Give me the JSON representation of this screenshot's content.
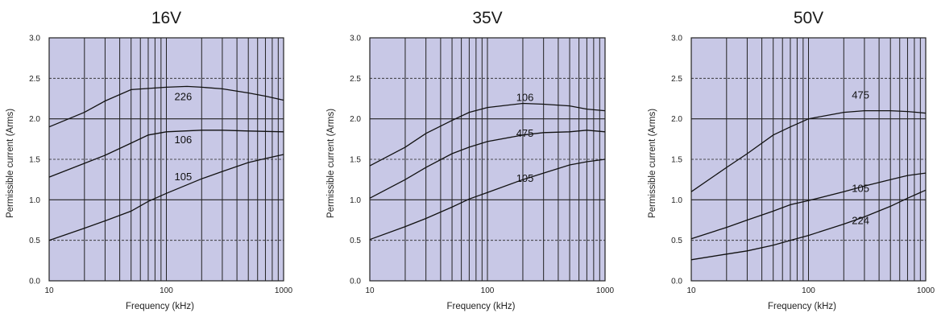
{
  "chart_data": [
    {
      "type": "line",
      "title": "16V",
      "xlabel": "Frequency (kHz)",
      "ylabel": "Permissible current (Arms)",
      "x_scale": "log",
      "xlim": [
        10,
        1000
      ],
      "ylim": [
        0.0,
        3.0
      ],
      "x_ticks": [
        "10",
        "100",
        "1000"
      ],
      "y_ticks": [
        "0.0",
        "0.5",
        "1.0",
        "1.5",
        "2.0",
        "2.5",
        "3.0"
      ],
      "grid": "on",
      "plot_background": "#c8c8e6",
      "series": [
        {
          "name": "226",
          "label_at": [
            100,
            2.23
          ],
          "points": [
            [
              10,
              1.9
            ],
            [
              20,
              2.08
            ],
            [
              30,
              2.22
            ],
            [
              50,
              2.36
            ],
            [
              100,
              2.39
            ],
            [
              150,
              2.4
            ],
            [
              200,
              2.39
            ],
            [
              300,
              2.37
            ],
            [
              500,
              2.32
            ],
            [
              700,
              2.28
            ],
            [
              1000,
              2.23
            ]
          ]
        },
        {
          "name": "106",
          "label_at": [
            100,
            1.7
          ],
          "points": [
            [
              10,
              1.28
            ],
            [
              20,
              1.45
            ],
            [
              30,
              1.55
            ],
            [
              50,
              1.7
            ],
            [
              70,
              1.8
            ],
            [
              100,
              1.84
            ],
            [
              200,
              1.86
            ],
            [
              300,
              1.86
            ],
            [
              500,
              1.85
            ],
            [
              1000,
              1.84
            ]
          ]
        },
        {
          "name": "105",
          "label_at": [
            100,
            1.24
          ],
          "points": [
            [
              10,
              0.5
            ],
            [
              20,
              0.65
            ],
            [
              30,
              0.74
            ],
            [
              50,
              0.86
            ],
            [
              70,
              0.98
            ],
            [
              100,
              1.08
            ],
            [
              200,
              1.26
            ],
            [
              300,
              1.35
            ],
            [
              500,
              1.46
            ],
            [
              700,
              1.51
            ],
            [
              1000,
              1.56
            ]
          ]
        }
      ]
    },
    {
      "type": "line",
      "title": "35V",
      "xlabel": "Frequency (kHz)",
      "ylabel": "Permissible current (Arms)",
      "x_scale": "log",
      "xlim": [
        10,
        1000
      ],
      "ylim": [
        0.0,
        3.0
      ],
      "x_ticks": [
        "10",
        "100",
        "1000"
      ],
      "y_ticks": [
        "0.0",
        "0.5",
        "1.0",
        "1.5",
        "2.0",
        "2.5",
        "3.0"
      ],
      "grid": "on",
      "plot_background": "#c8c8e6",
      "series": [
        {
          "name": "106",
          "label_at": [
            150,
            2.22
          ],
          "points": [
            [
              10,
              1.42
            ],
            [
              20,
              1.65
            ],
            [
              30,
              1.82
            ],
            [
              50,
              1.98
            ],
            [
              70,
              2.08
            ],
            [
              100,
              2.14
            ],
            [
              200,
              2.19
            ],
            [
              300,
              2.18
            ],
            [
              500,
              2.16
            ],
            [
              700,
              2.12
            ],
            [
              1000,
              2.1
            ]
          ]
        },
        {
          "name": "475",
          "label_at": [
            150,
            1.78
          ],
          "points": [
            [
              10,
              1.02
            ],
            [
              20,
              1.25
            ],
            [
              30,
              1.4
            ],
            [
              50,
              1.57
            ],
            [
              70,
              1.65
            ],
            [
              100,
              1.72
            ],
            [
              200,
              1.8
            ],
            [
              300,
              1.83
            ],
            [
              500,
              1.84
            ],
            [
              700,
              1.86
            ],
            [
              1000,
              1.84
            ]
          ]
        },
        {
          "name": "105",
          "label_at": [
            150,
            1.22
          ],
          "points": [
            [
              10,
              0.51
            ],
            [
              20,
              0.67
            ],
            [
              30,
              0.77
            ],
            [
              50,
              0.91
            ],
            [
              70,
              1.01
            ],
            [
              100,
              1.09
            ],
            [
              200,
              1.25
            ],
            [
              300,
              1.33
            ],
            [
              500,
              1.43
            ],
            [
              700,
              1.47
            ],
            [
              1000,
              1.5
            ]
          ]
        }
      ]
    },
    {
      "type": "line",
      "title": "50V",
      "xlabel": "Frequency (kHz)",
      "ylabel": "Permissible current (Arms)",
      "x_scale": "log",
      "xlim": [
        10,
        1000
      ],
      "ylim": [
        0.0,
        3.0
      ],
      "x_ticks": [
        "10",
        "100",
        "1000"
      ],
      "y_ticks": [
        "0.0",
        "0.5",
        "1.0",
        "1.5",
        "2.0",
        "2.5",
        "3.0"
      ],
      "grid": "on",
      "plot_background": "#c8c8e6",
      "series": [
        {
          "name": "475",
          "label_at": [
            200,
            2.25
          ],
          "points": [
            [
              10,
              1.1
            ],
            [
              20,
              1.4
            ],
            [
              30,
              1.57
            ],
            [
              50,
              1.8
            ],
            [
              70,
              1.9
            ],
            [
              100,
              2.0
            ],
            [
              200,
              2.08
            ],
            [
              300,
              2.1
            ],
            [
              500,
              2.1
            ],
            [
              700,
              2.09
            ],
            [
              1000,
              2.07
            ]
          ]
        },
        {
          "name": "105",
          "label_at": [
            200,
            1.1
          ],
          "points": [
            [
              10,
              0.52
            ],
            [
              20,
              0.66
            ],
            [
              30,
              0.75
            ],
            [
              50,
              0.86
            ],
            [
              70,
              0.94
            ],
            [
              100,
              0.99
            ],
            [
              200,
              1.1
            ],
            [
              300,
              1.17
            ],
            [
              500,
              1.25
            ],
            [
              700,
              1.3
            ],
            [
              1000,
              1.33
            ]
          ]
        },
        {
          "name": "224",
          "label_at": [
            200,
            0.7
          ],
          "points": [
            [
              10,
              0.26
            ],
            [
              20,
              0.33
            ],
            [
              30,
              0.37
            ],
            [
              50,
              0.44
            ],
            [
              70,
              0.5
            ],
            [
              100,
              0.56
            ],
            [
              200,
              0.7
            ],
            [
              300,
              0.79
            ],
            [
              500,
              0.92
            ],
            [
              700,
              1.02
            ],
            [
              1000,
              1.12
            ]
          ]
        }
      ]
    }
  ]
}
